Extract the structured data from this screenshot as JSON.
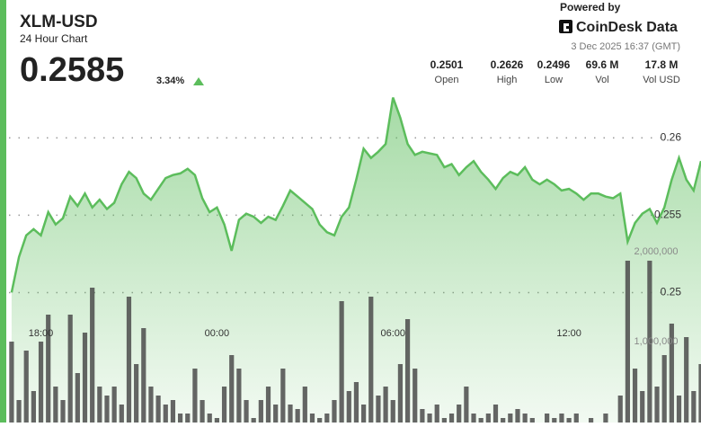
{
  "header": {
    "symbol": "XLM-USD",
    "subtitle": "24 Hour Chart",
    "price": "0.2585",
    "change": "3.34%",
    "powered_by": "Powered by",
    "brand": "CoinDesk Data",
    "timestamp": "3 Dec 2025 16:37 (GMT)",
    "stats": [
      {
        "value": "0.2501",
        "label": "Open"
      },
      {
        "value": "0.2626",
        "label": "High"
      },
      {
        "value": "0.2496",
        "label": "Low"
      },
      {
        "value": "69.6 M",
        "label": "Vol"
      },
      {
        "value": "17.8 M",
        "label": "Vol USD"
      }
    ]
  },
  "chart_data": {
    "type": "line",
    "x": [
      -1,
      -0.75,
      -0.5,
      -0.25,
      0,
      0.25,
      0.5,
      0.75,
      1,
      1.25,
      1.5,
      1.75,
      2,
      2.25,
      2.5,
      2.75,
      3,
      3.25,
      3.5,
      3.75,
      4,
      4.25,
      4.5,
      4.75,
      5,
      5.25,
      5.5,
      5.75,
      6,
      6.25,
      6.5,
      6.75,
      7,
      7.25,
      7.5,
      7.75,
      8,
      8.25,
      8.5,
      8.75,
      9,
      9.25,
      9.5,
      9.75,
      10,
      10.25,
      10.5,
      10.75,
      11,
      11.25,
      11.5,
      11.75,
      12,
      12.25,
      12.5,
      12.75,
      13,
      13.25,
      13.5,
      13.75,
      14,
      14.25,
      14.5,
      14.75,
      15,
      15.25,
      15.5,
      15.75,
      16,
      16.25,
      16.5,
      16.75,
      17,
      17.25,
      17.5,
      17.75,
      18,
      18.25,
      18.5,
      18.75,
      19,
      19.25,
      19.5,
      19.75,
      20,
      20.25,
      20.5,
      20.75,
      21,
      21.25,
      21.5,
      21.75,
      22,
      22.25,
      22.5
    ],
    "series": [
      {
        "type": "area",
        "color": "#5cbd5c",
        "values": [
          0.25,
          0.2523,
          0.2537,
          0.2541,
          0.2537,
          0.2552,
          0.2544,
          0.2548,
          0.2562,
          0.2556,
          0.2564,
          0.2555,
          0.256,
          0.2554,
          0.2558,
          0.257,
          0.2578,
          0.2574,
          0.2564,
          0.256,
          0.2567,
          0.2574,
          0.2576,
          0.2577,
          0.258,
          0.2576,
          0.2561,
          0.2552,
          0.2555,
          0.2544,
          0.2527,
          0.2547,
          0.2551,
          0.2549,
          0.2545,
          0.2549,
          0.2547,
          0.2556,
          0.2566,
          0.2562,
          0.2558,
          0.2554,
          0.2544,
          0.2539,
          0.2537,
          0.2549,
          0.2555,
          0.2573,
          0.2593,
          0.2587,
          0.2591,
          0.2596,
          0.2626,
          0.2613,
          0.2596,
          0.2589,
          0.2591,
          0.259,
          0.2589,
          0.2581,
          0.2583,
          0.2576,
          0.2581,
          0.2585,
          0.2578,
          0.2573,
          0.2567,
          0.2574,
          0.2578,
          0.2576,
          0.2581,
          0.2573,
          0.257,
          0.2573,
          0.257,
          0.2566,
          0.2567,
          0.2564,
          0.256,
          0.2564,
          0.2564,
          0.2562,
          0.2561,
          0.2564,
          0.2533,
          0.2545,
          0.2551,
          0.2554,
          0.2545,
          0.2555,
          0.2573,
          0.2587,
          0.2573,
          0.2566,
          0.2585
        ]
      },
      {
        "type": "bar",
        "axis": "y2",
        "color": "#4b4b4b",
        "values": [
          1000000,
          350000,
          900000,
          450000,
          1000000,
          1300000,
          500000,
          350000,
          1300000,
          650000,
          1100000,
          1600000,
          500000,
          400000,
          500000,
          300000,
          1500000,
          750000,
          1150000,
          500000,
          400000,
          300000,
          350000,
          200000,
          200000,
          700000,
          350000,
          200000,
          150000,
          500000,
          850000,
          700000,
          350000,
          150000,
          350000,
          500000,
          300000,
          700000,
          300000,
          250000,
          500000,
          200000,
          150000,
          200000,
          350000,
          1450000,
          450000,
          550000,
          300000,
          1500000,
          400000,
          500000,
          350000,
          750000,
          1250000,
          700000,
          250000,
          200000,
          300000,
          150000,
          200000,
          300000,
          500000,
          200000,
          150000,
          200000,
          300000,
          150000,
          200000,
          250000,
          200000,
          150000,
          100000,
          200000,
          150000,
          200000,
          150000,
          200000,
          100000,
          150000,
          100000,
          200000,
          100000,
          400000,
          1900000,
          700000,
          450000,
          1900000,
          500000,
          850000,
          1200000,
          400000,
          1050000,
          450000,
          750000
        ]
      }
    ],
    "xlim": [
      -1.15,
      22.5
    ],
    "xticks": [
      {
        "value": 0,
        "label": "18:00"
      },
      {
        "value": 6,
        "label": "00:00"
      },
      {
        "value": 12,
        "label": "06:00"
      },
      {
        "value": 18,
        "label": "12:00"
      }
    ],
    "ylim": [
      0.2416,
      0.2631
    ],
    "yticks": [
      0.26,
      0.255,
      0.25
    ],
    "y2lim": [
      100000,
      3800000
    ],
    "y2ticks": [
      {
        "value": 2000000,
        "label": "2,000,000"
      },
      {
        "value": 1000000,
        "label": "1,000,000"
      }
    ],
    "grid": true
  }
}
